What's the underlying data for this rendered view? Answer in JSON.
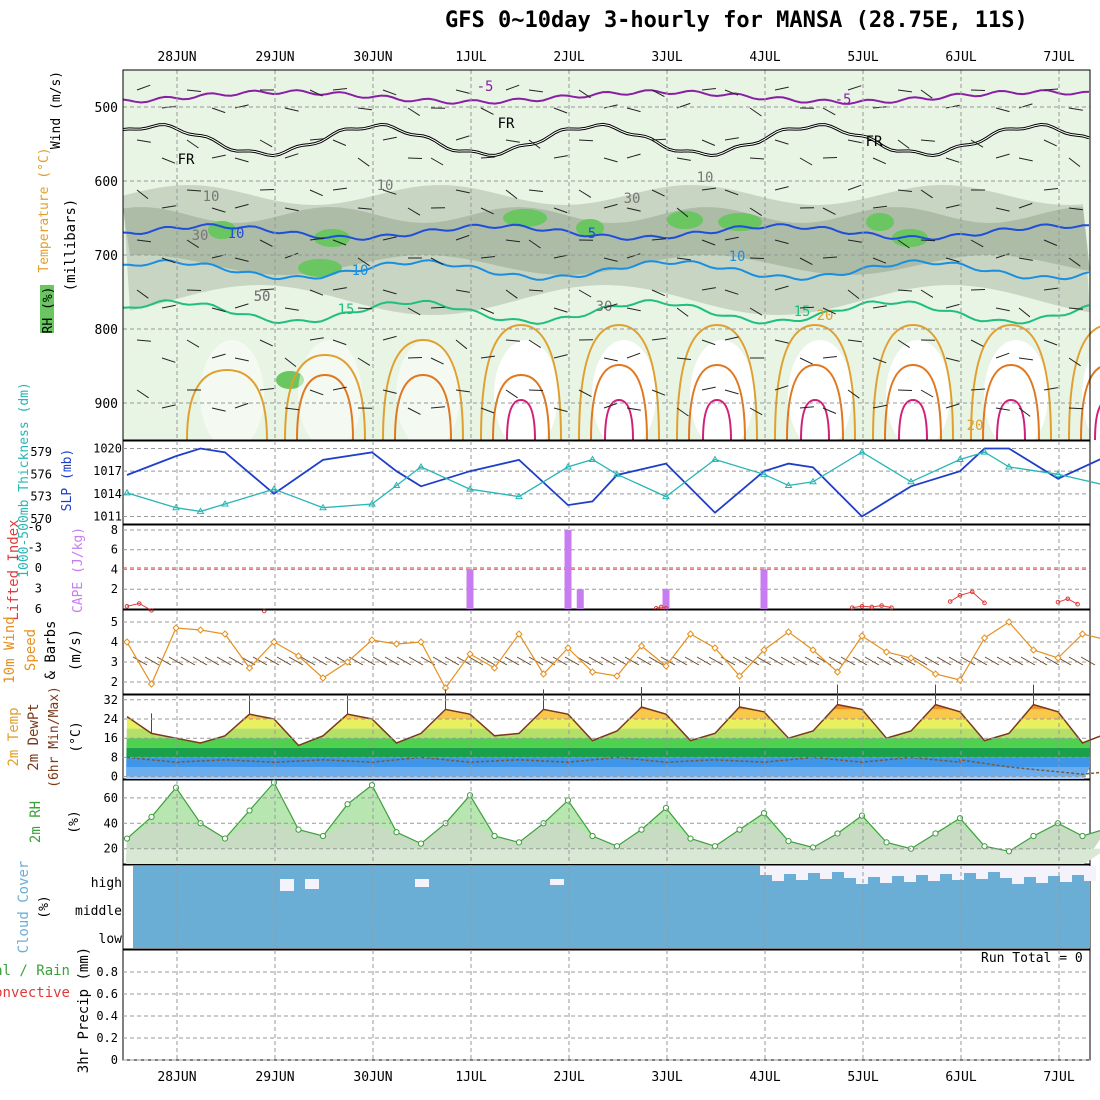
{
  "title": "GFS 0~10day 3-hourly for MANSA (28.75E, 11S)",
  "date_labels": [
    "28JUN",
    "29JUN",
    "30JUN",
    "1JUL",
    "2JUL",
    "3JUL",
    "4JUL",
    "5JUL",
    "6JUL",
    "7JUL"
  ],
  "colors": {
    "rh_light": "#e8f4e4",
    "rh_mid": "#c3d2be",
    "rh_dark": "#a8b9a4",
    "rh_green": "#69c660",
    "temp_minus5": "#8a1fa6",
    "temp_freezing": "#000000",
    "temp_5": "#1f4ed8",
    "temp_10": "#1a8fe0",
    "temp_15": "#1fbf7f",
    "temp_20": "#e0a030",
    "temp_25": "#e07820",
    "temp_30": "#d0207a",
    "slp": "#1f3fc8",
    "thickness": "#29b5b5",
    "cape": "#c77cf0",
    "lifted_index": "#e03a3a",
    "wind_speed": "#e69020",
    "cloud": "#6aaed6",
    "rh2m": "#3ca03c"
  },
  "upper_panel": {
    "y_axis_label_wind": "Wind (m/s)",
    "y_axis_label_temp": "Temperature (°C)",
    "y_axis_label_rh": "RH (%)",
    "y_axis_label_pressure": "(millibars)",
    "pressure_ticks": [
      "500",
      "600",
      "700",
      "800",
      "900"
    ],
    "contour_labels": [
      "-5",
      "-5",
      "FR",
      "FR",
      "FR",
      "5",
      "10",
      "10",
      "15",
      "15",
      "20",
      "20",
      "10",
      "10",
      "30",
      "30",
      "50",
      "10",
      "30",
      "10",
      "50"
    ]
  },
  "chart_data": [
    {
      "type": "line",
      "panel": "SLP and 1000-500mb thickness",
      "ylabel_left": "1000-500mb Thickness (dm)",
      "ylabel_right": "SLP (mb)",
      "left_ticks": [
        "579",
        "576",
        "573",
        "570"
      ],
      "right_ticks": [
        "1020",
        "1017",
        "1014",
        "1011"
      ],
      "ylim_slp": [
        1010,
        1021
      ],
      "ylim_thickness": [
        569.3,
        580.5
      ],
      "x_range_days": [
        0,
        10
      ],
      "series": [
        {
          "name": "SLP (mb)",
          "x": [
            0,
            0.5,
            0.75,
            1,
            1.5,
            2,
            2.5,
            2.75,
            3,
            3.5,
            4,
            4.5,
            4.75,
            5,
            5.5,
            6,
            6.5,
            6.75,
            7,
            7.5,
            8,
            8.5,
            8.75,
            9,
            9.5,
            10
          ],
          "values": [
            1016.5,
            1019,
            1020,
            1019.5,
            1014,
            1018.5,
            1019.5,
            1017,
            1015,
            1017,
            1018.5,
            1012.5,
            1013,
            1016.5,
            1018,
            1011.5,
            1017,
            1018,
            1017.5,
            1011,
            1015,
            1017,
            1020,
            1020,
            1016,
            1019
          ]
        },
        {
          "name": "Thickness (dm)",
          "x": [
            0,
            0.5,
            0.75,
            1,
            1.5,
            2,
            2.5,
            2.75,
            3,
            3.5,
            4,
            4.5,
            4.75,
            5,
            5.5,
            6,
            6.5,
            6.75,
            7,
            7.5,
            8,
            8.5,
            8.75,
            9,
            9.5,
            10
          ],
          "values": [
            573.5,
            571.5,
            571,
            572,
            574,
            571.5,
            572,
            574.5,
            577,
            574,
            573,
            577,
            578,
            576,
            573,
            578,
            576,
            574.5,
            575,
            579,
            575,
            578,
            579,
            577,
            576,
            574.5
          ]
        }
      ]
    },
    {
      "type": "bar",
      "panel": "CAPE and Lifted Index",
      "ylabel_left": "Lifted Index",
      "ylabel_right": "CAPE (J/kg)",
      "left_ticks": [
        "-6",
        "-3",
        "0",
        "3",
        "6"
      ],
      "right_ticks": [
        "8",
        "6",
        "4",
        "2"
      ],
      "ylim_cape": [
        0,
        8.5
      ],
      "ylim_li": [
        -6.3,
        6
      ],
      "x_range_days": [
        0,
        10
      ],
      "cape_series": [
        {
          "name": "CAPE",
          "x": [
            3.5,
            4.5,
            4.625,
            5.5,
            6.5
          ],
          "values": [
            4,
            8,
            2,
            2,
            4
          ]
        }
      ],
      "lifted_index_series": [
        {
          "name": "Lifted Index",
          "x": [
            0,
            0.125,
            0.25,
            1.4,
            5.4,
            5.45,
            5.5,
            7.4,
            7.5,
            7.6,
            7.7,
            7.8,
            8.4,
            8.5,
            8.625,
            8.75,
            9.5,
            9.6,
            9.7
          ],
          "values": [
            5.6,
            5.2,
            6.2,
            6.3,
            5.9,
            5.7,
            5.9,
            5.8,
            5.6,
            5.7,
            5.5,
            5.8,
            4.9,
            4.0,
            3.5,
            5.1,
            5.0,
            4.5,
            5.3
          ]
        }
      ]
    },
    {
      "type": "line",
      "panel": "10m Wind Speed & Barbs",
      "ylabel": "10m Wind Speed & Barbs (m/s)",
      "ticks": [
        "5",
        "4",
        "3",
        "2"
      ],
      "ylim": [
        1.4,
        5.6
      ],
      "x_range_days": [
        0,
        10
      ],
      "series": [
        {
          "name": "10m Wind Speed",
          "x": [
            0,
            0.25,
            0.5,
            0.75,
            1,
            1.25,
            1.5,
            1.75,
            2,
            2.25,
            2.5,
            2.75,
            3,
            3.25,
            3.5,
            3.75,
            4,
            4.25,
            4.5,
            4.75,
            5,
            5.25,
            5.5,
            5.75,
            6,
            6.25,
            6.5,
            6.75,
            7,
            7.25,
            7.5,
            7.75,
            8,
            8.25,
            8.5,
            8.75,
            9,
            9.25,
            9.5,
            9.75,
            10
          ],
          "values": [
            4.0,
            1.9,
            4.7,
            4.6,
            4.4,
            2.7,
            4.0,
            3.3,
            2.2,
            3.0,
            4.1,
            3.9,
            4.0,
            1.7,
            3.4,
            2.7,
            4.4,
            2.4,
            3.7,
            2.5,
            2.3,
            3.8,
            2.8,
            4.4,
            3.7,
            2.3,
            3.6,
            4.5,
            3.6,
            2.5,
            4.3,
            3.5,
            3.2,
            2.4,
            2.1,
            4.2,
            5.0,
            3.6,
            3.2,
            4.4,
            4.1
          ]
        }
      ]
    },
    {
      "type": "area",
      "panel": "2m Temp / DewPt",
      "ylabel": "2m Temp 2m DewPt (6hr Min/Max) (°C)",
      "ticks": [
        "32",
        "24",
        "16",
        "8",
        "0"
      ],
      "ylim": [
        -1,
        34
      ],
      "x_range_days": [
        0,
        10
      ],
      "series": [
        {
          "name": "2m Temp",
          "x": [
            0,
            0.25,
            0.5,
            0.75,
            1,
            1.25,
            1.5,
            1.75,
            2,
            2.25,
            2.5,
            2.75,
            3,
            3.25,
            3.5,
            3.75,
            4,
            4.25,
            4.5,
            4.75,
            5,
            5.25,
            5.5,
            5.75,
            6,
            6.25,
            6.5,
            6.75,
            7,
            7.25,
            7.5,
            7.75,
            8,
            8.25,
            8.5,
            8.75,
            9,
            9.25,
            9.5,
            9.75,
            10
          ],
          "values": [
            25,
            18,
            16,
            14,
            17,
            26,
            24,
            13,
            17,
            26,
            24,
            14,
            18,
            28,
            26,
            17,
            18,
            28,
            26,
            15,
            19,
            29,
            26,
            15,
            18,
            29,
            27,
            16,
            19,
            30,
            28,
            16,
            19,
            30,
            27,
            15,
            18,
            30,
            27,
            14,
            18
          ]
        },
        {
          "name": "2m DewPt",
          "x": [
            0,
            0.5,
            1,
            1.5,
            2,
            2.5,
            3,
            3.5,
            4,
            4.5,
            5,
            5.5,
            6,
            6.5,
            7,
            7.5,
            8,
            8.5,
            8.5,
            9,
            9.25,
            9.5,
            9.75,
            10
          ],
          "values": [
            8,
            6,
            7,
            6,
            7,
            6,
            8,
            6,
            7,
            6,
            8,
            6,
            7,
            6,
            8,
            6,
            8,
            6,
            7,
            4,
            3,
            2,
            1,
            2
          ]
        }
      ]
    },
    {
      "type": "area",
      "panel": "2m RH",
      "ylabel": "2m RH (%)",
      "ticks": [
        "60",
        "40",
        "20"
      ],
      "ylim": [
        8,
        74
      ],
      "x_range_days": [
        0,
        10
      ],
      "series": [
        {
          "name": "2m RH",
          "x": [
            0,
            0.25,
            0.5,
            0.75,
            1,
            1.25,
            1.5,
            1.75,
            2,
            2.25,
            2.5,
            2.75,
            3,
            3.25,
            3.5,
            3.75,
            4,
            4.25,
            4.5,
            4.75,
            5,
            5.25,
            5.5,
            5.75,
            6,
            6.25,
            6.5,
            6.75,
            7,
            7.25,
            7.5,
            7.75,
            8,
            8.25,
            8.5,
            8.75,
            9,
            9.25,
            9.5,
            9.75,
            10
          ],
          "values": [
            28,
            45,
            68,
            40,
            28,
            50,
            72,
            35,
            30,
            55,
            70,
            33,
            24,
            40,
            62,
            30,
            25,
            40,
            58,
            30,
            22,
            35,
            52,
            28,
            22,
            35,
            48,
            26,
            21,
            32,
            46,
            25,
            20,
            32,
            44,
            22,
            18,
            30,
            40,
            30,
            36
          ]
        }
      ]
    },
    {
      "type": "heatmap",
      "panel": "Cloud Cover",
      "ylabel": "Cloud Cover (%)",
      "layers": [
        "high",
        "middle",
        "low"
      ],
      "x_range_days": [
        0,
        10
      ],
      "note": "mostly fully overcast; reduced high cloud from 4JUL onward"
    },
    {
      "type": "bar",
      "panel": "3hr Precip",
      "ylabel": "3hr Precip (mm)",
      "legend": [
        "Total / Rain",
        "Convective"
      ],
      "ticks": [
        "0.8",
        "0.6",
        "0.4",
        "0.2",
        "0"
      ],
      "ylim": [
        0,
        1
      ],
      "x_range_days": [
        0,
        10
      ],
      "values": [],
      "annotation": "Run Total = 0"
    }
  ]
}
